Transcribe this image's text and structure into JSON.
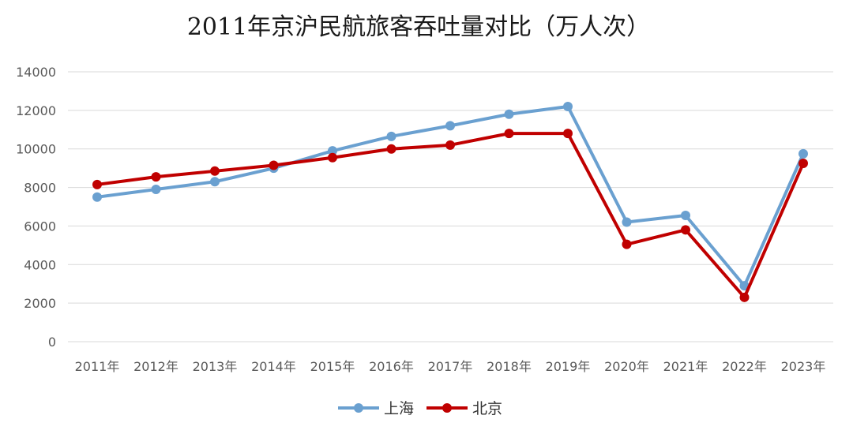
{
  "chart_data": {
    "type": "line",
    "title": "2011年京沪民航旅客吞吐量对比（万人次）",
    "categories": [
      "2011年",
      "2012年",
      "2013年",
      "2014年",
      "2015年",
      "2016年",
      "2017年",
      "2018年",
      "2019年",
      "2020年",
      "2021年",
      "2022年",
      "2023年"
    ],
    "series": [
      {
        "name": "上海",
        "color": "#6aa0d0",
        "values": [
          7500,
          7900,
          8300,
          9000,
          9900,
          10650,
          11200,
          11800,
          12200,
          6200,
          6550,
          2900,
          9750
        ]
      },
      {
        "name": "北京",
        "color": "#c00000",
        "values": [
          8150,
          8550,
          8850,
          9150,
          9550,
          10000,
          10200,
          10800,
          10800,
          5050,
          5800,
          2300,
          9250
        ]
      }
    ],
    "ylim": [
      0,
      14000
    ],
    "yticks": [
      0,
      2000,
      4000,
      6000,
      8000,
      10000,
      12000,
      14000
    ],
    "grid": true,
    "legend_position": "bottom-center"
  }
}
